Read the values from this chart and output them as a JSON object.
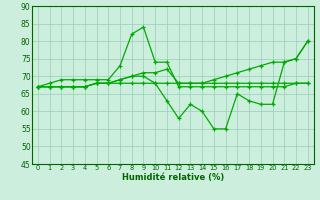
{
  "xlabel": "Humidité relative (%)",
  "bg_color": "#cceedd",
  "grid_color": "#99ccbb",
  "line_color": "#00aa00",
  "marker_color": "#00aa00",
  "xlim": [
    -0.5,
    23.5
  ],
  "ylim": [
    45,
    90
  ],
  "yticks": [
    45,
    50,
    55,
    60,
    65,
    70,
    75,
    80,
    85,
    90
  ],
  "xticks": [
    0,
    1,
    2,
    3,
    4,
    5,
    6,
    7,
    8,
    9,
    10,
    11,
    12,
    13,
    14,
    15,
    16,
    17,
    18,
    19,
    20,
    21,
    22,
    23
  ],
  "lines": [
    {
      "x": [
        0,
        1,
        2,
        3,
        4,
        5,
        6,
        7,
        8,
        9,
        10,
        11,
        12,
        13,
        14,
        15,
        16,
        17,
        18,
        19,
        20,
        21,
        22,
        23
      ],
      "y": [
        67,
        67,
        67,
        67,
        67,
        68,
        68,
        68,
        68,
        68,
        68,
        68,
        68,
        68,
        68,
        68,
        68,
        68,
        68,
        68,
        68,
        68,
        68,
        68
      ]
    },
    {
      "x": [
        0,
        1,
        2,
        3,
        4,
        5,
        6,
        7,
        8,
        9,
        10,
        11,
        12,
        13,
        14,
        15,
        16,
        17,
        18,
        19,
        20,
        21,
        22,
        23
      ],
      "y": [
        67,
        68,
        69,
        69,
        69,
        69,
        69,
        73,
        82,
        84,
        74,
        74,
        67,
        67,
        67,
        67,
        67,
        67,
        67,
        67,
        67,
        67,
        68,
        68
      ]
    },
    {
      "x": [
        0,
        1,
        2,
        3,
        4,
        5,
        6,
        7,
        8,
        9,
        10,
        11,
        12,
        13,
        14,
        15,
        16,
        17,
        18,
        19,
        20,
        21,
        22,
        23
      ],
      "y": [
        67,
        67,
        67,
        67,
        67,
        68,
        68,
        69,
        70,
        70,
        68,
        63,
        58,
        62,
        60,
        55,
        55,
        65,
        63,
        62,
        62,
        74,
        75,
        80
      ]
    },
    {
      "x": [
        0,
        1,
        2,
        3,
        4,
        5,
        6,
        7,
        8,
        9,
        10,
        11,
        12,
        13,
        14,
        15,
        16,
        17,
        18,
        19,
        20,
        21,
        22,
        23
      ],
      "y": [
        67,
        67,
        67,
        67,
        67,
        68,
        68,
        69,
        70,
        71,
        71,
        72,
        68,
        68,
        68,
        69,
        70,
        71,
        72,
        73,
        74,
        74,
        75,
        80
      ]
    }
  ]
}
